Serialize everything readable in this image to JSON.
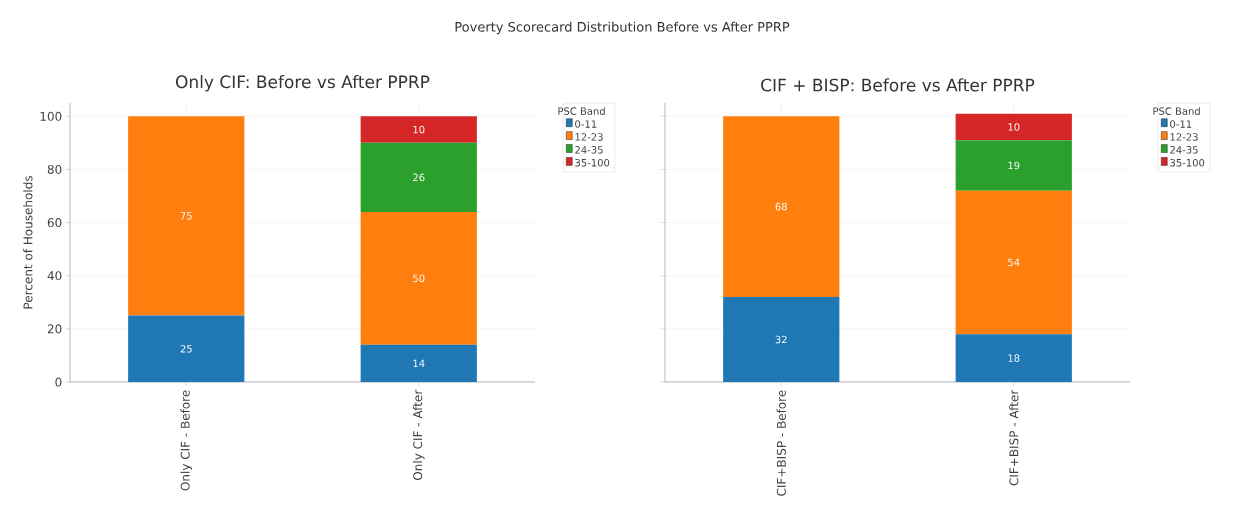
{
  "chart_data": [
    {
      "type": "bar",
      "stacked": true,
      "title": "Only CIF: Before vs After PPRP",
      "annotations": [
        "Poverty Scorecard Distribution Before vs After PPRP"
      ],
      "ylabel": "Percent of Households",
      "categories": [
        "Only CIF - Before",
        "Only CIF - After"
      ],
      "ylim": [
        0,
        105
      ],
      "yticks": [
        0,
        20,
        40,
        60,
        80,
        100
      ],
      "grid": true,
      "legend": "right",
      "legend_title": "PSC Band",
      "series": [
        {
          "name": "0-11",
          "color": "#1f77b4",
          "values": [
            25,
            14
          ],
          "value_labels": [
            "25",
            "14"
          ]
        },
        {
          "name": "12-23",
          "color": "#ff7f0e",
          "values": [
            75,
            50
          ],
          "value_labels": [
            "75",
            "50"
          ]
        },
        {
          "name": "24-35",
          "color": "#2ca02c",
          "values": [
            0,
            26
          ],
          "value_labels": [
            null,
            "26"
          ]
        },
        {
          "name": "35-100",
          "color": "#d62728",
          "values": [
            0,
            10
          ],
          "value_labels": [
            null,
            "10"
          ]
        }
      ]
    },
    {
      "type": "bar",
      "stacked": true,
      "title": "CIF + BISP: Before vs After PPRP",
      "categories": [
        "CIF+BISP - Before",
        "CIF+BISP - After"
      ],
      "ylim": [
        0,
        105
      ],
      "yticks": [
        0,
        20,
        40,
        60,
        80,
        100
      ],
      "tick_labels": "x",
      "grid": true,
      "legend": "right",
      "legend_title": "PSC Band",
      "series": [
        {
          "name": "0-11",
          "color": "#1f77b4",
          "values": [
            32,
            18
          ],
          "value_labels": [
            "32",
            "18"
          ]
        },
        {
          "name": "12-23",
          "color": "#ff7f0e",
          "values": [
            68,
            54
          ],
          "value_labels": [
            "68",
            "54"
          ]
        },
        {
          "name": "24-35",
          "color": "#2ca02c",
          "values": [
            0,
            19
          ],
          "value_labels": [
            null,
            "19"
          ]
        },
        {
          "name": "35-100",
          "color": "#d62728",
          "values": [
            0,
            10
          ],
          "value_labels": [
            null,
            "10"
          ]
        }
      ]
    }
  ]
}
